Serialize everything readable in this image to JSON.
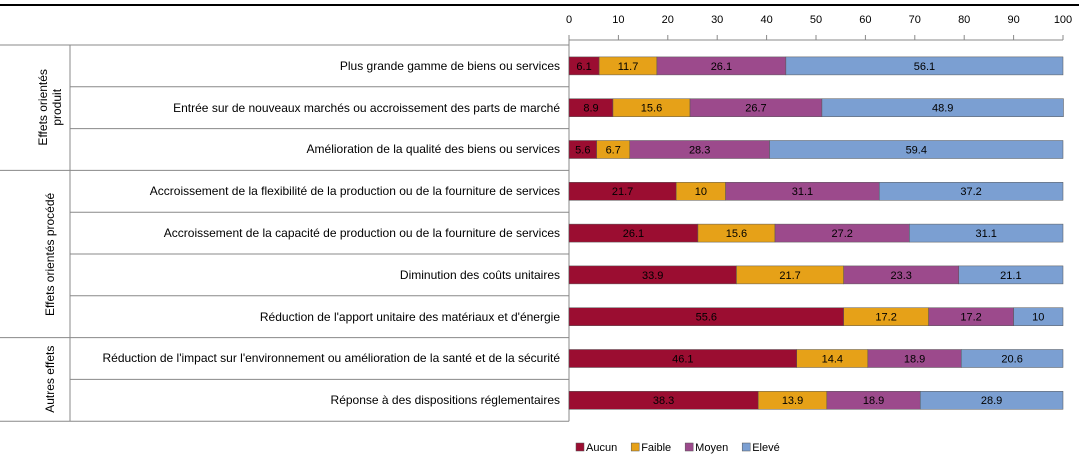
{
  "chart_data": {
    "type": "bar",
    "orientation": "horizontal",
    "stacked": true,
    "groups": [
      {
        "name": "Effets orientés produit",
        "categories": [
          "Plus grande gamme de biens ou services",
          "Entrée sur de nouveaux marchés ou accroissement des parts de marché",
          "Amélioration de la qualité des biens ou services"
        ]
      },
      {
        "name": "Effets orientés procédé",
        "categories": [
          "Accroissement de la flexibilité de la production ou de la fourniture de services",
          "Accroissement de la capacité de production ou de la fourniture de services",
          "Diminution des coûts unitaires",
          "Réduction de l'apport unitaire des matériaux et d'énergie"
        ]
      },
      {
        "name": "Autres effets",
        "categories": [
          "Réduction de l'impact sur l'environnement ou amélioration de la santé et de la sécurité",
          "Réponse à des dispositions réglementaires"
        ]
      }
    ],
    "series": [
      {
        "name": "Aucun",
        "color": "#9b0d31",
        "values": [
          6.1,
          8.9,
          5.6,
          21.7,
          26.1,
          33.9,
          55.6,
          46.1,
          38.3
        ]
      },
      {
        "name": "Faible",
        "color": "#e6a118",
        "values": [
          11.7,
          15.6,
          6.7,
          10,
          15.6,
          21.7,
          17.2,
          14.4,
          13.9
        ]
      },
      {
        "name": "Moyen",
        "color": "#9c4a8c",
        "values": [
          26.1,
          26.7,
          28.3,
          31.1,
          27.2,
          23.3,
          17.2,
          18.9,
          18.9
        ]
      },
      {
        "name": "Elevé",
        "color": "#7b9fd2",
        "values": [
          56.1,
          48.9,
          59.4,
          37.2,
          31.1,
          21.1,
          10,
          20.6,
          28.9
        ]
      }
    ],
    "xlim": [
      0,
      100
    ],
    "xticks": [
      0,
      10,
      20,
      30,
      40,
      50,
      60,
      70,
      80,
      90,
      100
    ],
    "legend": "bottom"
  }
}
